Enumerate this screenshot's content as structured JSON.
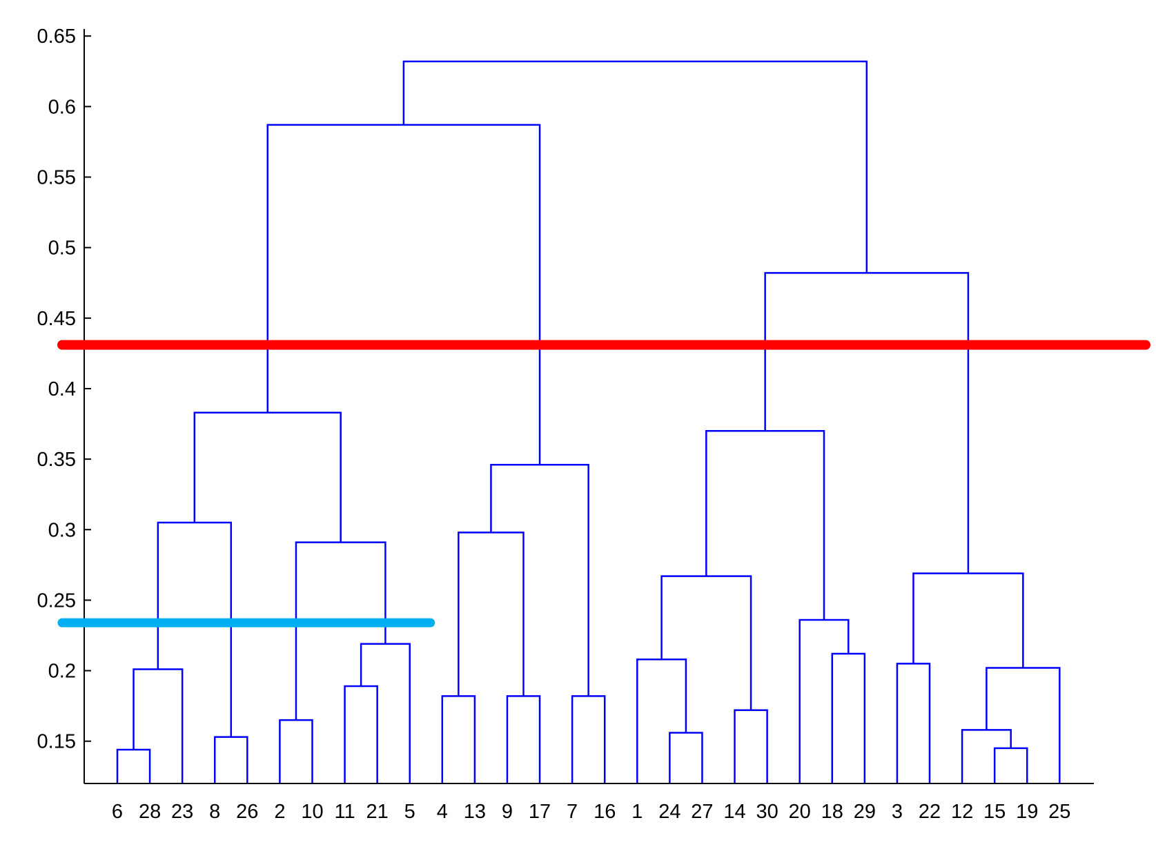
{
  "chart_data": {
    "type": "dendrogram",
    "title": "",
    "xlabel": "",
    "ylabel": "",
    "ylim": [
      0.12,
      0.655
    ],
    "yticks": [
      0.15,
      0.2,
      0.25,
      0.3,
      0.35,
      0.4,
      0.45,
      0.5,
      0.55,
      0.6,
      0.65
    ],
    "ytick_labels": [
      "0.15",
      "0.2",
      "0.25",
      "0.3",
      "0.35",
      "0.4",
      "0.45",
      "0.5",
      "0.55",
      "0.6",
      "0.65"
    ],
    "leaf_order": [
      "6",
      "28",
      "23",
      "8",
      "26",
      "2",
      "10",
      "11",
      "21",
      "5",
      "4",
      "13",
      "9",
      "17",
      "7",
      "16",
      "1",
      "24",
      "27",
      "14",
      "30",
      "20",
      "18",
      "29",
      "3",
      "22",
      "12",
      "15",
      "19",
      "25"
    ],
    "merges": [
      {
        "left": "6",
        "right": "28",
        "height": 0.144
      },
      {
        "left": "m1",
        "right": "23",
        "height": 0.201
      },
      {
        "left": "8",
        "right": "26",
        "height": 0.153
      },
      {
        "left": "m2",
        "right": "m3",
        "height": 0.305
      },
      {
        "left": "2",
        "right": "10",
        "height": 0.165
      },
      {
        "left": "11",
        "right": "21",
        "height": 0.189
      },
      {
        "left": "m6",
        "right": "5",
        "height": 0.219
      },
      {
        "left": "m5",
        "right": "m7",
        "height": 0.291
      },
      {
        "left": "m4",
        "right": "m8",
        "height": 0.383
      },
      {
        "left": "4",
        "right": "13",
        "height": 0.182
      },
      {
        "left": "9",
        "right": "17",
        "height": 0.182
      },
      {
        "left": "m10",
        "right": "m11",
        "height": 0.298
      },
      {
        "left": "7",
        "right": "16",
        "height": 0.182
      },
      {
        "left": "m12",
        "right": "m13",
        "height": 0.346
      },
      {
        "left": "m9",
        "right": "m14",
        "height": 0.587
      },
      {
        "left": "24",
        "right": "27",
        "height": 0.156
      },
      {
        "left": "1",
        "right": "m16",
        "height": 0.208
      },
      {
        "left": "14",
        "right": "30",
        "height": 0.172
      },
      {
        "left": "m17",
        "right": "m18",
        "height": 0.267
      },
      {
        "left": "18",
        "right": "29",
        "height": 0.212
      },
      {
        "left": "20",
        "right": "m20",
        "height": 0.236
      },
      {
        "left": "m19",
        "right": "m21",
        "height": 0.37
      },
      {
        "left": "3",
        "right": "22",
        "height": 0.205
      },
      {
        "left": "15",
        "right": "19",
        "height": 0.145
      },
      {
        "left": "12",
        "right": "m24",
        "height": 0.158
      },
      {
        "left": "m25",
        "right": "25",
        "height": 0.202
      },
      {
        "left": "m23",
        "right": "m26",
        "height": 0.269
      },
      {
        "left": "m22",
        "right": "m27",
        "height": 0.482
      },
      {
        "left": "m15",
        "right": "m28",
        "height": 0.632
      }
    ],
    "cut_lines": [
      {
        "y": 0.431,
        "color": "#ff0000",
        "from_leaf": "6",
        "to": "right-edge"
      },
      {
        "y": 0.234,
        "color": "#00b0f0",
        "from_leaf": "6",
        "to_leaf": "5"
      }
    ],
    "link_color": "#0000ff",
    "grid": false
  }
}
